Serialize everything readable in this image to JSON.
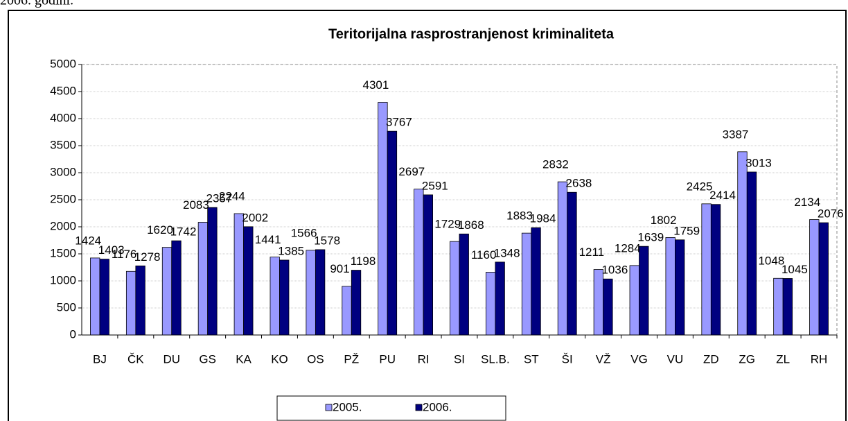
{
  "page_text": "2006. godini.",
  "chart_data": {
    "type": "bar",
    "title": "Teritorijalna rasprostranjenost kriminaliteta",
    "categories": [
      "BJ",
      "ČK",
      "DU",
      "GS",
      "KA",
      "KO",
      "OS",
      "PŽ",
      "PU",
      "RI",
      "SI",
      "SL.B.",
      "ST",
      "ŠI",
      "VŽ",
      "VG",
      "VU",
      "ZD",
      "ZG",
      "ZL",
      "RH"
    ],
    "series": [
      {
        "name": "2005.",
        "color": "#9999ff",
        "values": [
          1424,
          1176,
          1620,
          2083,
          2244,
          1441,
          1566,
          901,
          4301,
          2697,
          1729,
          1160,
          1883,
          2832,
          1211,
          1284,
          1802,
          2425,
          3387,
          1048,
          2134
        ]
      },
      {
        "name": "2006.",
        "color": "#000080",
        "values": [
          1403,
          1278,
          1742,
          2357,
          2002,
          1385,
          1578,
          1198,
          3767,
          2591,
          1868,
          1348,
          1984,
          2638,
          1036,
          1639,
          1759,
          2414,
          3013,
          1045,
          2076
        ]
      }
    ],
    "ylim": [
      0,
      5000
    ],
    "yticks": [
      0,
      500,
      1000,
      1500,
      2000,
      2500,
      3000,
      3500,
      4000,
      4500,
      5000
    ],
    "grid": true,
    "legend": "bottom"
  }
}
